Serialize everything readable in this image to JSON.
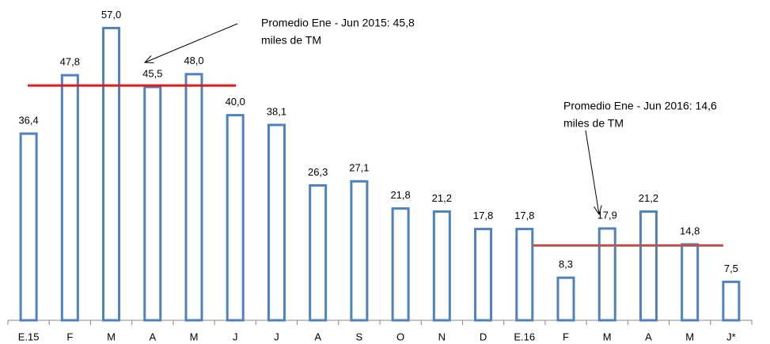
{
  "chart_data": {
    "type": "bar",
    "categories": [
      "E.15",
      "F",
      "M",
      "A",
      "M",
      "J",
      "J",
      "A",
      "S",
      "O",
      "N",
      "D",
      "E.16",
      "F",
      "M",
      "A",
      "M",
      "J*"
    ],
    "values": [
      36.4,
      47.8,
      57.0,
      45.5,
      48.0,
      40.0,
      38.1,
      26.3,
      27.1,
      21.8,
      21.2,
      17.8,
      17.8,
      8.3,
      17.9,
      21.2,
      14.8,
      7.5
    ],
    "value_labels": [
      "36,4",
      "47,8",
      "57,0",
      "45,5",
      "48,0",
      "40,0",
      "38,1",
      "26,3",
      "27,1",
      "21,8",
      "21,2",
      "17,8",
      "17,8",
      "8,3",
      "17,9",
      "21,2",
      "14,8",
      "7,5"
    ],
    "color": "#4f81bd",
    "ylim": [
      0,
      60
    ],
    "reference_lines": [
      {
        "value": 45.8,
        "color": "#e31a1c",
        "label": [
          "Promedio Ene - Jun 2015: 45,8",
          "miles de TM"
        ]
      },
      {
        "value": 14.6,
        "color": "#c0504d",
        "label": [
          "Promedio Ene - Jun 2016: 14,6",
          "miles de TM"
        ]
      }
    ]
  }
}
